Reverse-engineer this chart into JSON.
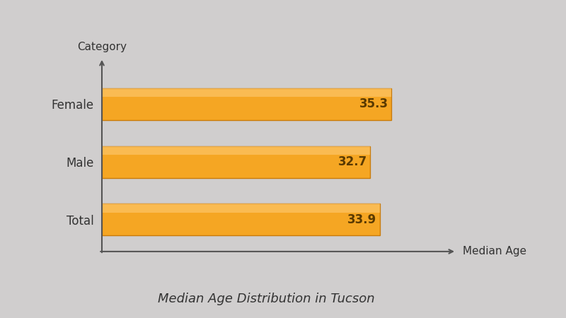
{
  "categories": [
    "Total",
    "Male",
    "Female"
  ],
  "values": [
    33.9,
    32.7,
    35.3
  ],
  "bar_color": "#F5A623",
  "bar_edge_color": "#C97B0A",
  "bar_height": 0.55,
  "title": "Median Age Distribution in Tucson",
  "xlabel": "Median Age",
  "ylabel": "Category",
  "title_fontsize": 13,
  "label_fontsize": 11,
  "tick_fontsize": 12,
  "value_fontsize": 12,
  "value_color": "#5a3a00",
  "axis_color": "#555555",
  "text_color": "#333333",
  "bg_color": "#d0cece",
  "xlim": [
    0,
    40
  ],
  "fig_width": 8.0,
  "fig_height": 4.5
}
